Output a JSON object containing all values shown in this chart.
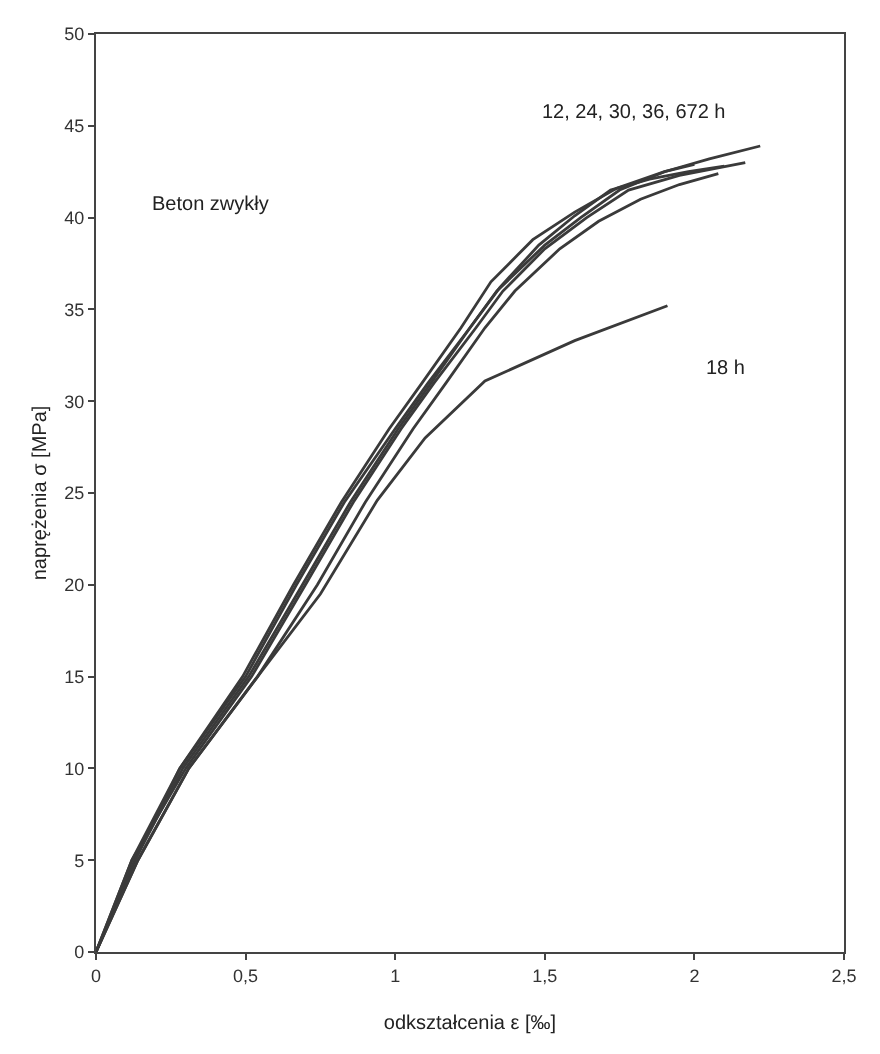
{
  "chart_data": {
    "type": "line",
    "xlabel": "odkształcenia ε [‰]",
    "ylabel": "naprężenia σ [MPa]",
    "annotations": [
      "Beton zwykły",
      "12, 24, 30, 36, 672 h",
      "18 h"
    ],
    "series": [
      {
        "color": "#3a3a3a",
        "x": [
          0,
          0.13,
          0.28,
          0.5,
          0.67,
          0.83,
          1.0,
          1.11,
          1.25,
          1.34,
          1.5,
          1.62,
          1.75,
          1.9,
          2.05,
          2.22
        ],
        "values": [
          0,
          5,
          10,
          15,
          20,
          24.5,
          28.5,
          31,
          34,
          36,
          38.5,
          40,
          41.5,
          42.5,
          43.2,
          43.9
        ]
      },
      {
        "color": "#3a3a3a",
        "x": [
          0,
          0.12,
          0.3,
          0.52,
          0.7,
          0.86,
          1.02,
          1.13,
          1.27,
          1.36,
          1.5,
          1.64,
          1.78,
          1.95,
          2.17
        ],
        "values": [
          0,
          5,
          10,
          15,
          20,
          24.5,
          28.5,
          31,
          34,
          36,
          38.3,
          40,
          41.5,
          42.3,
          43.0
        ]
      },
      {
        "color": "#3a3a3a",
        "x": [
          0,
          0.14,
          0.31,
          0.54,
          0.74,
          0.9,
          1.06,
          1.17,
          1.3,
          1.4,
          1.55,
          1.68,
          1.82,
          1.95,
          2.08
        ],
        "values": [
          0,
          5,
          10,
          15,
          20,
          24.5,
          28.5,
          31,
          34,
          36,
          38.3,
          39.8,
          41,
          41.8,
          42.4
        ]
      },
      {
        "color": "#3a3a3a",
        "x": [
          0,
          0.13,
          0.29,
          0.51,
          0.69,
          0.85,
          1.01,
          1.12,
          1.25,
          1.35,
          1.48,
          1.6,
          1.72,
          1.85,
          1.98,
          2.1
        ],
        "values": [
          0,
          5,
          10,
          15,
          20,
          24.5,
          28.5,
          31,
          34,
          36.2,
          38.5,
          40.1,
          41.5,
          42.1,
          42.5,
          42.8
        ]
      },
      {
        "color": "#3a3a3a",
        "x": [
          0,
          0.12,
          0.28,
          0.49,
          0.66,
          0.82,
          0.98,
          1.09,
          1.22,
          1.32,
          1.46,
          1.6,
          1.74,
          1.9,
          2.0
        ],
        "values": [
          0,
          5,
          10,
          15,
          20,
          24.5,
          28.5,
          31,
          34,
          36.5,
          38.8,
          40.3,
          41.6,
          42.5,
          42.9
        ]
      },
      {
        "color": "#3a3a3a",
        "x": [
          0,
          0.14,
          0.31,
          0.54,
          0.75,
          0.94,
          1.1,
          1.3,
          1.6,
          1.91
        ],
        "values": [
          0,
          5,
          10,
          15,
          19.5,
          24.6,
          28,
          31.1,
          33.3,
          35.2
        ]
      }
    ],
    "xlim": [
      0,
      2.5
    ],
    "ylim": [
      0,
      50
    ],
    "xticks": [
      0,
      {
        "value": 0.5,
        "label": "0,5"
      },
      1,
      {
        "value": 1.5,
        "label": "1,5"
      },
      2,
      {
        "value": 2.5,
        "label": "2,5"
      }
    ],
    "yticks": [
      0,
      5,
      10,
      15,
      20,
      25,
      30,
      35,
      40,
      45,
      50
    ],
    "marker": "none",
    "line_style": "solid"
  }
}
